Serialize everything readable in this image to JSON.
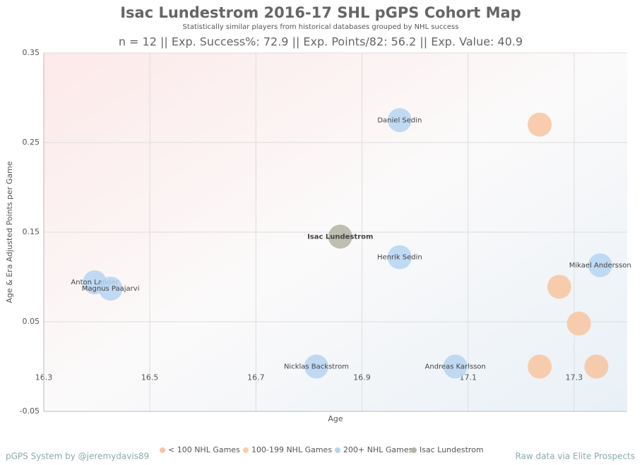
{
  "chart_data": {
    "type": "scatter",
    "title": "Isac Lundestrom 2016-17 SHL pGPS Cohort Map",
    "subtitle": "Statistically similar players from historical databases grouped by NHL success",
    "stats": "n = 12 || Exp. Success%: 72.9 || Exp. Points/82: 56.2 || Exp. Value: 40.9",
    "x_label": "Age",
    "y_label": "Age & Era Adjusted Points per Game",
    "footer_left": "pGPS System by @jeremydavis89",
    "footer_right": "Raw data via Elite Prospects",
    "xlim": [
      16.3,
      17.4
    ],
    "ylim": [
      -0.05,
      0.35
    ],
    "xticks": [
      16.3,
      16.5,
      16.7,
      16.9,
      17.1,
      17.3
    ],
    "yticks": [
      -0.05,
      0.05,
      0.15,
      0.25,
      0.35
    ],
    "grid": true,
    "series": [
      {
        "name": "< 100 NHL Games",
        "color": "#f8c4a0",
        "x": [
          17.235,
          17.272,
          17.309,
          17.235,
          17.342
        ],
        "values": [
          0.27,
          0.089,
          0.048,
          0.0,
          0.0
        ],
        "labels": [
          null,
          null,
          null,
          null,
          null
        ]
      },
      {
        "name": "100-199 NHL Games",
        "color": "#f6cfa8",
        "x": [],
        "values": [],
        "labels": []
      },
      {
        "name": "200+ NHL Games",
        "color": "#b6d4f2",
        "x": [
          16.971,
          16.971,
          17.349,
          16.396,
          16.426,
          16.814,
          17.076
        ],
        "values": [
          0.275,
          0.122,
          0.113,
          0.094,
          0.087,
          0.0,
          0.0
        ],
        "labels": [
          "Daniel Sedin",
          "Henrik Sedin",
          "Mikael Andersson",
          "Anton Lander",
          "Magnus Paajarvi",
          "Nicklas Backstrom",
          "Andreas Karlsson"
        ]
      },
      {
        "name": "Isac Lundestrom",
        "color": "#b3b3a5",
        "x": [
          16.859
        ],
        "values": [
          0.145
        ],
        "labels": [
          "Isac Lundestrom"
        ]
      }
    ]
  }
}
